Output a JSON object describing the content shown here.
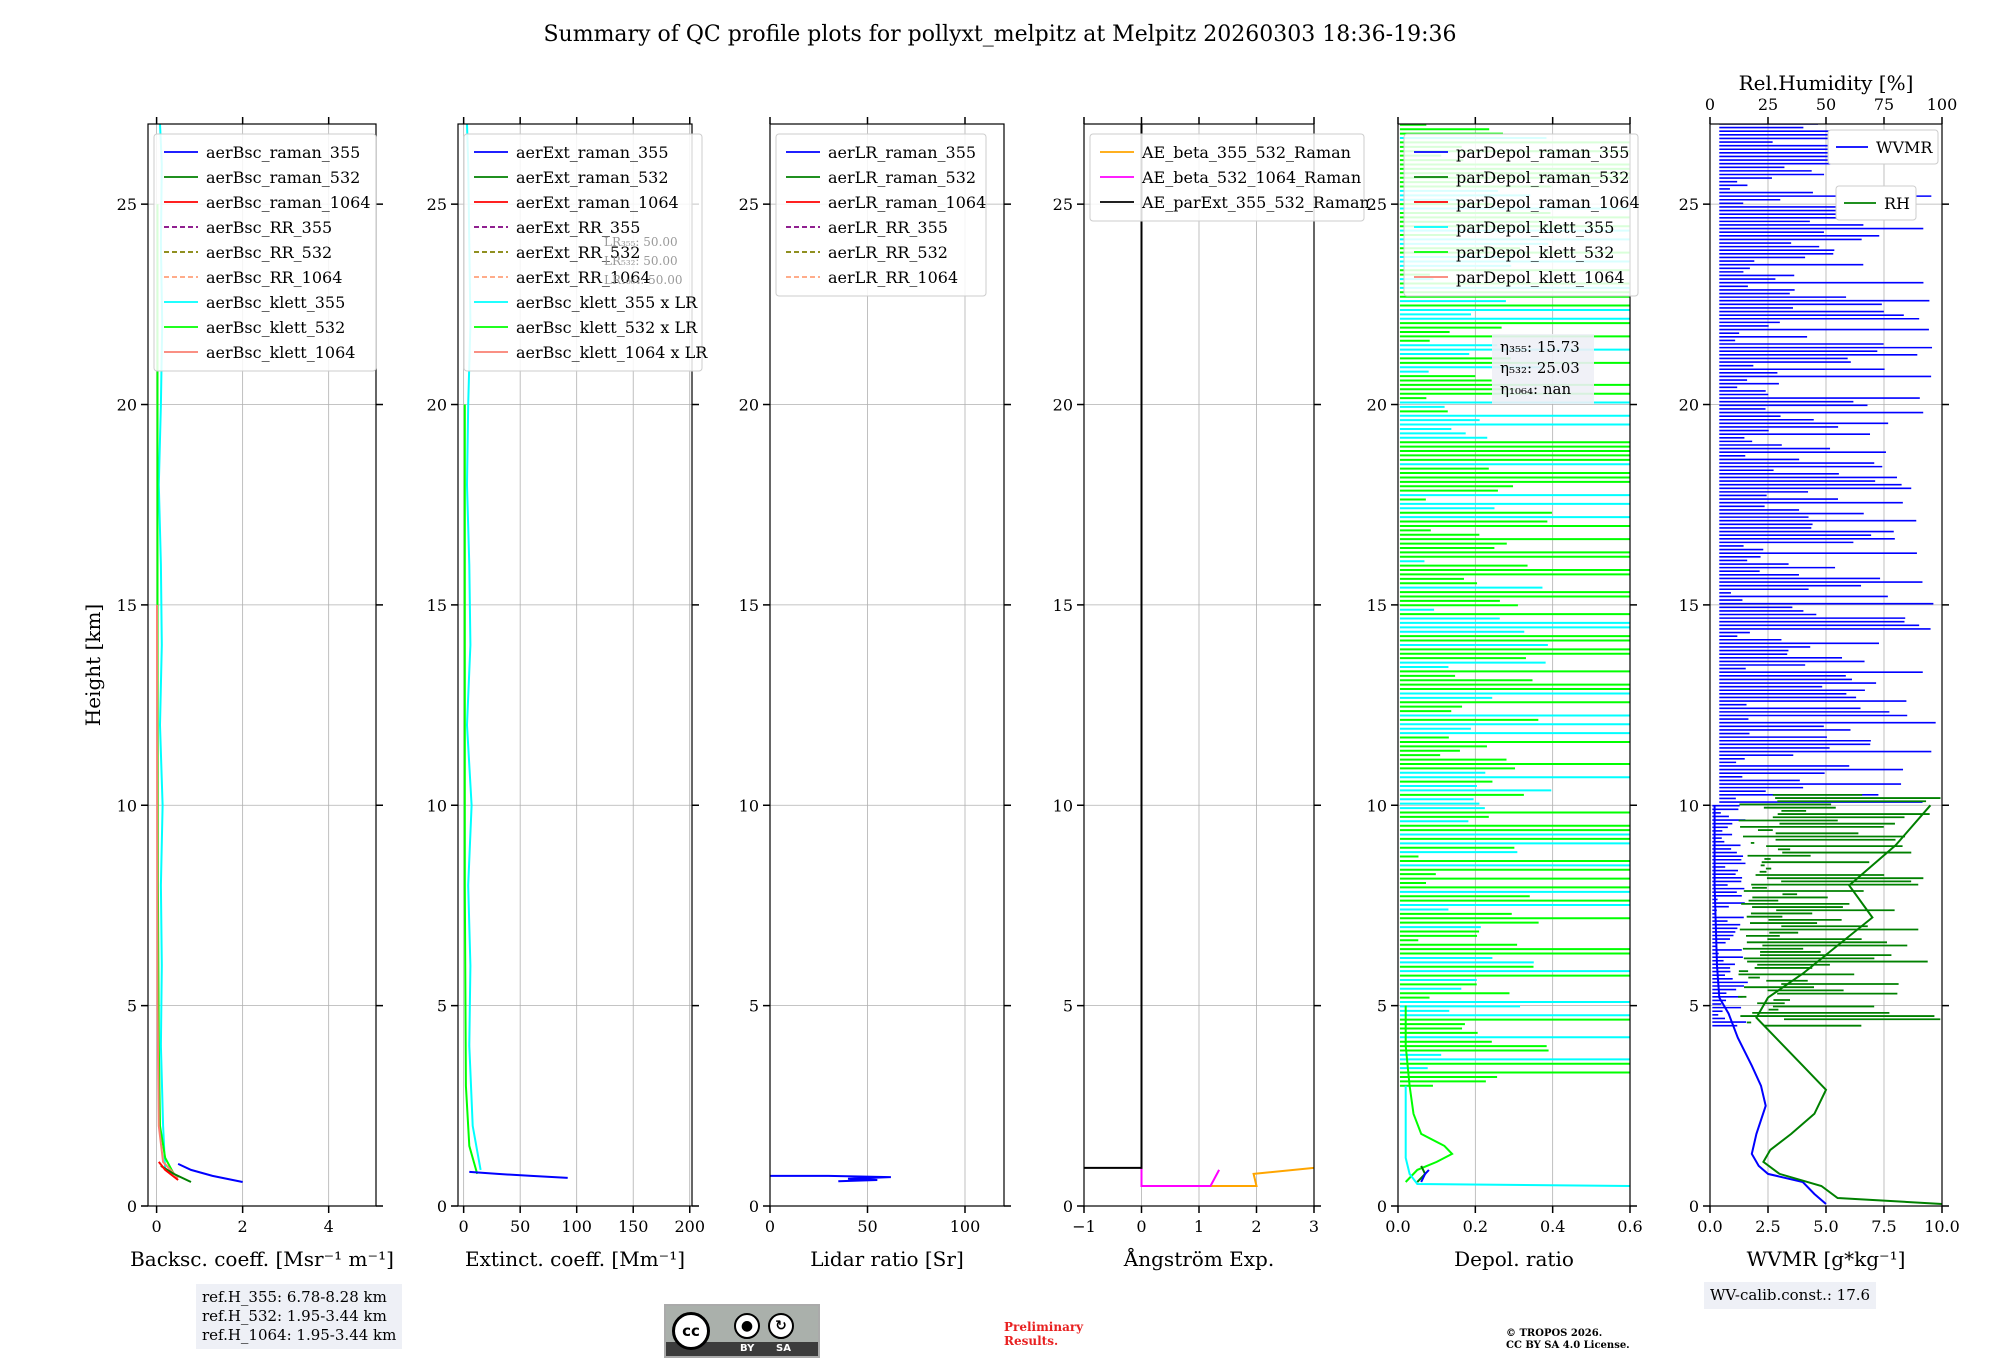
{
  "figure": {
    "title": "Summary of QC profile plots for pollyxt_melpitz at Melpitz 20260303 18:36-19:36",
    "y_label": "Height [km]",
    "ref_heights": [
      "ref.H_355: 6.78-8.28 km",
      "ref.H_532: 1.95-3.44 km",
      "ref.H_1064: 1.95-3.44 km"
    ],
    "wv_calib": "WV-calib.const.: 17.6",
    "cc_badge": {
      "cc": "cc",
      "by": "BY",
      "sa": "SA",
      "by_icon": "person-icon",
      "sa_icon": "share-alike-icon"
    },
    "preliminary": [
      "Preliminary",
      "Results."
    ],
    "license": [
      "© TROPOS 2026.",
      "CC BY SA 4.0 License."
    ],
    "colors": {
      "blue": "#0000ff",
      "green": "#008000",
      "red": "#ff0000",
      "cyan": "#00ffff",
      "lime": "#00ff00",
      "salmon": "#fa8072",
      "orange": "#ffa500",
      "magenta": "#ff00ff",
      "black": "#000000",
      "purple": "#800080",
      "olive": "#808000",
      "lightsalmon": "#ffa07a"
    }
  },
  "chart_data": [
    {
      "id": "backscatter",
      "type": "line",
      "xlabel": "Backsc. coeff. [Msr⁻¹ m⁻¹]",
      "xlim": [
        -0.2,
        5.1
      ],
      "xticks": [
        0,
        2,
        4
      ],
      "ylim": [
        0,
        27
      ],
      "yticks": [
        0,
        5,
        10,
        15,
        20,
        25
      ],
      "legend": [
        {
          "label": "aerBsc_raman_355",
          "color": "#0000ff",
          "dash": false
        },
        {
          "label": "aerBsc_raman_532",
          "color": "#008000",
          "dash": false
        },
        {
          "label": "aerBsc_raman_1064",
          "color": "#ff0000",
          "dash": false
        },
        {
          "label": "aerBsc_RR_355",
          "color": "#800080",
          "dash": true
        },
        {
          "label": "aerBsc_RR_532",
          "color": "#808000",
          "dash": true
        },
        {
          "label": "aerBsc_RR_1064",
          "color": "#ffa07a",
          "dash": true
        },
        {
          "label": "aerBsc_klett_355",
          "color": "#00ffff",
          "dash": false
        },
        {
          "label": "aerBsc_klett_532",
          "color": "#00ff00",
          "dash": false
        },
        {
          "label": "aerBsc_klett_1064",
          "color": "#fa8072",
          "dash": false
        }
      ],
      "series": [
        {
          "name": "aerBsc_klett_355",
          "color": "#00ffff",
          "x": [
            0.2,
            0.15,
            0.1,
            0.12,
            0.1,
            0.14,
            0.08,
            0.12,
            0.1,
            0.05,
            0.1,
            0.13,
            0.1,
            0.12,
            0.08
          ],
          "y": [
            0.9,
            2,
            4,
            6,
            8,
            10,
            12,
            14,
            16,
            18,
            20,
            22,
            24,
            26,
            27
          ]
        },
        {
          "name": "aerBsc_klett_532",
          "color": "#00ff00",
          "x": [
            0.4,
            0.2,
            0.08,
            0.05,
            0.03,
            0.02,
            0.02
          ],
          "y": [
            0.8,
            1.2,
            2,
            4,
            8,
            15,
            25
          ]
        },
        {
          "name": "aerBsc_klett_1064",
          "color": "#fa8072",
          "x": [
            0.5,
            0.15,
            0.05,
            0.02,
            0.01
          ],
          "y": [
            0.7,
            1.1,
            2,
            5,
            15
          ]
        },
        {
          "name": "aerBsc_raman_355",
          "color": "#0000ff",
          "x": [
            2.0,
            1.3,
            0.8,
            0.5
          ],
          "y": [
            0.6,
            0.75,
            0.9,
            1.05
          ]
        },
        {
          "name": "aerBsc_raman_532",
          "color": "#008000",
          "x": [
            0.8,
            0.4,
            0.1
          ],
          "y": [
            0.6,
            0.8,
            1.0
          ]
        },
        {
          "name": "aerBsc_raman_1064",
          "color": "#ff0000",
          "x": [
            0.5,
            0.2,
            0.05
          ],
          "y": [
            0.65,
            0.9,
            1.1
          ]
        }
      ]
    },
    {
      "id": "extinction",
      "type": "line",
      "xlabel": "Extinct. coeff. [Mm⁻¹]",
      "xlim": [
        -5,
        202
      ],
      "xticks": [
        0,
        50,
        100,
        150,
        200
      ],
      "ylim": [
        0,
        27
      ],
      "yticks": [
        0,
        5,
        10,
        15,
        20,
        25
      ],
      "legend": [
        {
          "label": "aerExt_raman_355",
          "color": "#0000ff",
          "dash": false
        },
        {
          "label": "aerExt_raman_532",
          "color": "#008000",
          "dash": false
        },
        {
          "label": "aerExt_raman_1064",
          "color": "#ff0000",
          "dash": false
        },
        {
          "label": "aerExt_RR_355",
          "color": "#800080",
          "dash": true
        },
        {
          "label": "aerExt_RR_532",
          "color": "#808000",
          "dash": true
        },
        {
          "label": "aerExt_RR_1064",
          "color": "#ffa07a",
          "dash": true
        },
        {
          "label": "aerBsc_klett_355 x LR",
          "color": "#00ffff",
          "dash": false
        },
        {
          "label": "aerBsc_klett_532 x LR",
          "color": "#00ff00",
          "dash": false
        },
        {
          "label": "aerBsc_klett_1064 x LR",
          "color": "#fa8072",
          "dash": false
        }
      ],
      "lr_labels": [
        "LR₃₅₅: 50.00",
        "LR₅₃₂: 50.00",
        "LR₁₀₆₄: 50.00"
      ],
      "series": [
        {
          "name": "aerBsc_klett_355 x LR",
          "color": "#00ffff",
          "x": [
            15,
            8,
            5,
            6,
            4,
            7,
            3,
            6,
            5,
            3,
            4,
            6,
            5,
            4,
            3
          ],
          "y": [
            0.9,
            2,
            4,
            6,
            8,
            10,
            12,
            14,
            16,
            18,
            20,
            22,
            24,
            26,
            27
          ]
        },
        {
          "name": "aerBsc_klett_532 x LR",
          "color": "#00ff00",
          "x": [
            12,
            5,
            2,
            1,
            1
          ],
          "y": [
            0.8,
            1.5,
            3,
            8,
            20
          ]
        },
        {
          "name": "aerExt_raman_355",
          "color": "#0000ff",
          "x": [
            92,
            60,
            30,
            5
          ],
          "y": [
            0.7,
            0.75,
            0.8,
            0.85
          ]
        }
      ]
    },
    {
      "id": "lidar_ratio",
      "type": "line",
      "xlabel": "Lidar ratio [Sr]",
      "xlim": [
        0,
        120
      ],
      "xticks": [
        0,
        50,
        100
      ],
      "ylim": [
        0,
        27
      ],
      "yticks": [
        0,
        5,
        10,
        15,
        20,
        25
      ],
      "legend": [
        {
          "label": "aerLR_raman_355",
          "color": "#0000ff",
          "dash": false
        },
        {
          "label": "aerLR_raman_532",
          "color": "#008000",
          "dash": false
        },
        {
          "label": "aerLR_raman_1064",
          "color": "#ff0000",
          "dash": false
        },
        {
          "label": "aerLR_RR_355",
          "color": "#800080",
          "dash": true
        },
        {
          "label": "aerLR_RR_532",
          "color": "#808000",
          "dash": true
        },
        {
          "label": "aerLR_RR_1064",
          "color": "#ffa07a",
          "dash": true
        }
      ],
      "series": [
        {
          "name": "aerLR_raman_355",
          "color": "#0000ff",
          "x": [
            0,
            30,
            62,
            40,
            55,
            35
          ],
          "y": [
            0.75,
            0.75,
            0.72,
            0.68,
            0.65,
            0.62
          ]
        }
      ]
    },
    {
      "id": "angstrom",
      "type": "line",
      "xlabel": "Ångström Exp.",
      "xlim": [
        -1,
        3
      ],
      "xticks": [
        -1,
        0,
        1,
        2,
        3
      ],
      "ylim": [
        0,
        27
      ],
      "yticks": [
        0,
        5,
        10,
        15,
        20,
        25
      ],
      "legend": [
        {
          "label": "AE_beta_355_532_Raman",
          "color": "#ffa500",
          "dash": false
        },
        {
          "label": "AE_beta_532_1064_Raman",
          "color": "#ff00ff",
          "dash": false
        },
        {
          "label": "AE_parExt_355_532_Raman",
          "color": "#000000",
          "dash": false
        }
      ],
      "series": [
        {
          "name": "AE_beta_355_532_Raman",
          "color": "#ffa500",
          "x": [
            0,
            0,
            2.0,
            1.95,
            3.0
          ],
          "y": [
            27,
            0.5,
            0.5,
            0.8,
            0.95
          ]
        },
        {
          "name": "AE_beta_532_1064_Raman",
          "color": "#ff00ff",
          "x": [
            0,
            0,
            1.2,
            1.35
          ],
          "y": [
            27,
            0.5,
            0.5,
            0.9
          ]
        },
        {
          "name": "AE_parExt_355_532_Raman",
          "color": "#000000",
          "x": [
            0,
            0,
            -1
          ],
          "y": [
            27,
            0.95,
            0.95
          ]
        }
      ]
    },
    {
      "id": "depol",
      "type": "line",
      "xlabel": "Depol. ratio",
      "xlim": [
        0,
        0.6
      ],
      "xticks": [
        0.0,
        0.2,
        0.4,
        0.6
      ],
      "ylim": [
        0,
        27
      ],
      "yticks": [
        0,
        5,
        10,
        15,
        20,
        25
      ],
      "legend": [
        {
          "label": "parDepol_raman_355",
          "color": "#0000ff",
          "dash": false
        },
        {
          "label": "parDepol_raman_532",
          "color": "#008000",
          "dash": false
        },
        {
          "label": "parDepol_raman_1064",
          "color": "#ff0000",
          "dash": false
        },
        {
          "label": "parDepol_klett_355",
          "color": "#00ffff",
          "dash": false
        },
        {
          "label": "parDepol_klett_532",
          "color": "#00ff00",
          "dash": false
        },
        {
          "label": "parDepol_klett_1064",
          "color": "#fa8072",
          "dash": false
        }
      ],
      "eta": [
        "η₃₅₅: 15.73",
        "η₅₃₂: 25.03",
        "η₁₀₆₄: nan"
      ],
      "series": [
        {
          "name": "parDepol_klett_532",
          "color": "#00ff00",
          "x": [
            0.02,
            0.05,
            0.1,
            0.14,
            0.12,
            0.06,
            0.04,
            0.03,
            0.02,
            0.02
          ],
          "y": [
            0.6,
            0.9,
            1.1,
            1.3,
            1.5,
            1.8,
            2.3,
            3.0,
            4.0,
            5.0
          ]
        },
        {
          "name": "parDepol_klett_355",
          "color": "#00ffff",
          "x": [
            0.6,
            0.05,
            0.03,
            0.02,
            0.02
          ],
          "y": [
            0.5,
            0.55,
            0.8,
            1.2,
            3.0
          ]
        },
        {
          "name": "parDepol_raman_532",
          "color": "#008000",
          "x": [
            0.05,
            0.07,
            0.06
          ],
          "y": [
            0.6,
            0.8,
            1.0
          ]
        },
        {
          "name": "parDepol_raman_355",
          "color": "#0000ff",
          "x": [
            0.06,
            0.07,
            0.08
          ],
          "y": [
            0.6,
            0.8,
            0.9
          ]
        }
      ]
    },
    {
      "id": "wvmr",
      "type": "line",
      "xlabel": "WVMR [g*kg⁻¹]",
      "xlim": [
        0,
        10
      ],
      "xticks": [
        0.0,
        2.5,
        5.0,
        7.5,
        10.0
      ],
      "ylim": [
        0,
        27
      ],
      "yticks": [
        0,
        5,
        10,
        15,
        20,
        25
      ],
      "top_axis_label": "Rel.Humidity [%]",
      "top_xlim": [
        0,
        100
      ],
      "top_xticks": [
        0,
        25,
        50,
        75,
        100
      ],
      "legend": [
        {
          "label": "WVMR",
          "color": "#0000ff",
          "dash": false
        },
        {
          "label": "RH",
          "color": "#008000",
          "dash": false
        }
      ],
      "series": [
        {
          "name": "WVMR",
          "color": "#0000ff",
          "x": [
            5.0,
            4.5,
            4.0,
            2.5,
            2.1,
            1.8,
            2.0,
            2.4,
            2.2,
            1.8,
            1.2,
            0.8,
            0.4,
            0.3,
            0.2,
            0.2
          ],
          "y": [
            0.05,
            0.3,
            0.6,
            0.8,
            1.0,
            1.3,
            1.8,
            2.5,
            3.0,
            3.5,
            4.2,
            4.8,
            5.2,
            6.0,
            8.0,
            10.0
          ]
        },
        {
          "name": "RH",
          "color": "#008000",
          "x": [
            10.0,
            5.5,
            4.8,
            3.0,
            2.3,
            2.6,
            3.5,
            4.5,
            5.0,
            4.0,
            3.0,
            2.0,
            2.5,
            4.0,
            5.5,
            7.0,
            6.0,
            8.0,
            9.5
          ],
          "y": [
            0.05,
            0.2,
            0.5,
            0.8,
            1.1,
            1.4,
            1.8,
            2.3,
            2.9,
            3.5,
            4.1,
            4.7,
            5.2,
            5.8,
            6.5,
            7.2,
            8.0,
            9.0,
            10.0
          ]
        }
      ]
    }
  ]
}
